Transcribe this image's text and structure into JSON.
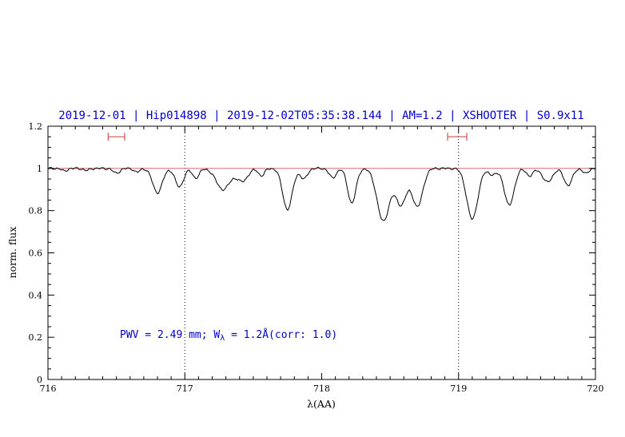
{
  "title": "2019-12-01 | Hip014898 | 2019-12-02T05:35:38.144 | AM=1.2 | XSHOOTER | S0.9x11",
  "annotation": {
    "prefix": "PWV = 2.49 mm; W",
    "subscript": "λ",
    "suffix": " = 1.2Å(corr: 1.0)"
  },
  "colors": {
    "title": "#0000cc",
    "annotation": "#0000cc",
    "reference_line": "#cc5555",
    "marker": "#cc5555",
    "spectrum": "#000000",
    "axis": "#000000",
    "gridline": "#000000"
  },
  "chart_data": {
    "type": "line",
    "title": "2019-12-01 | Hip014898 | 2019-12-02T05:35:38.144 | AM=1.2 | XSHOOTER | S0.9x11",
    "xlabel": "λ(AA)",
    "ylabel": "norm. flux",
    "xlim": [
      716,
      720
    ],
    "ylim": [
      0,
      1.2
    ],
    "x_major_ticks": [
      716,
      717,
      718,
      719,
      720
    ],
    "x_minor_step": 0.1,
    "y_major_ticks": [
      0,
      0.2,
      0.4,
      0.6,
      0.8,
      1,
      1.2
    ],
    "y_minor_step": 0.05,
    "grid_vlines": [
      717,
      719
    ],
    "reference_line_y": 1.0,
    "baseline": 1.0,
    "noise_amplitude": 0.0035,
    "sample_step": 0.008,
    "absorption_lines": [
      {
        "center": 716.12,
        "depth": 0.012,
        "sigma": 0.02
      },
      {
        "center": 716.28,
        "depth": 0.01,
        "sigma": 0.02
      },
      {
        "center": 716.5,
        "depth": 0.022,
        "sigma": 0.025
      },
      {
        "center": 716.65,
        "depth": 0.018,
        "sigma": 0.02
      },
      {
        "center": 716.8,
        "depth": 0.115,
        "sigma": 0.035
      },
      {
        "center": 716.96,
        "depth": 0.088,
        "sigma": 0.03
      },
      {
        "center": 717.08,
        "depth": 0.045,
        "sigma": 0.025
      },
      {
        "center": 717.28,
        "depth": 0.1,
        "sigma": 0.05
      },
      {
        "center": 717.42,
        "depth": 0.06,
        "sigma": 0.04
      },
      {
        "center": 717.56,
        "depth": 0.035,
        "sigma": 0.022
      },
      {
        "center": 717.75,
        "depth": 0.195,
        "sigma": 0.035
      },
      {
        "center": 717.87,
        "depth": 0.05,
        "sigma": 0.025
      },
      {
        "center": 718.08,
        "depth": 0.045,
        "sigma": 0.025
      },
      {
        "center": 718.22,
        "depth": 0.165,
        "sigma": 0.03
      },
      {
        "center": 718.45,
        "depth": 0.25,
        "sigma": 0.045
      },
      {
        "center": 718.58,
        "depth": 0.17,
        "sigma": 0.04
      },
      {
        "center": 718.7,
        "depth": 0.18,
        "sigma": 0.038
      },
      {
        "center": 719.1,
        "depth": 0.24,
        "sigma": 0.04
      },
      {
        "center": 719.25,
        "depth": 0.03,
        "sigma": 0.03
      },
      {
        "center": 719.37,
        "depth": 0.175,
        "sigma": 0.035
      },
      {
        "center": 719.52,
        "depth": 0.035,
        "sigma": 0.025
      },
      {
        "center": 719.65,
        "depth": 0.065,
        "sigma": 0.035
      },
      {
        "center": 719.8,
        "depth": 0.08,
        "sigma": 0.03
      },
      {
        "center": 719.93,
        "depth": 0.025,
        "sigma": 0.02
      }
    ],
    "interval_markers": [
      {
        "x_start": 716.44,
        "x_end": 716.56,
        "y": 1.15
      },
      {
        "x_start": 718.92,
        "x_end": 719.06,
        "y": 1.15
      }
    ]
  }
}
